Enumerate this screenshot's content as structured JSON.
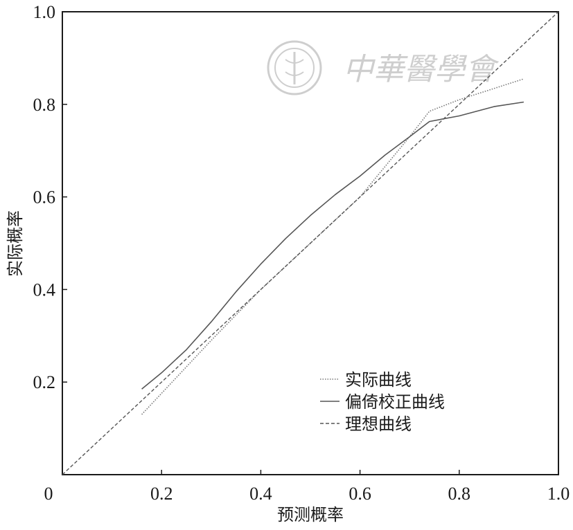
{
  "chart_data": {
    "type": "line",
    "xlabel": "预测概率",
    "ylabel": "实际概率",
    "xlim": [
      0,
      1.0
    ],
    "ylim": [
      0,
      1.0
    ],
    "x_ticks": [
      {
        "value": 0,
        "label": "0"
      },
      {
        "value": 0.2,
        "label": "0.2"
      },
      {
        "value": 0.4,
        "label": "0.4"
      },
      {
        "value": 0.6,
        "label": "0.6"
      },
      {
        "value": 0.8,
        "label": "0.8"
      },
      {
        "value": 1.0,
        "label": "1.0"
      }
    ],
    "y_ticks": [
      {
        "value": 0.2,
        "label": "0.2"
      },
      {
        "value": 0.4,
        "label": "0.4"
      },
      {
        "value": 0.6,
        "label": "0.6"
      },
      {
        "value": 0.8,
        "label": "0.8"
      },
      {
        "value": 1.0,
        "label": "1.0"
      }
    ],
    "grid": false,
    "legend_position": "bottom-right",
    "series": [
      {
        "name": "实际曲线",
        "style": "dotted",
        "color": "#777777",
        "points": [
          [
            0.16,
            0.13
          ],
          [
            0.3,
            0.29
          ],
          [
            0.4,
            0.4
          ],
          [
            0.5,
            0.5
          ],
          [
            0.6,
            0.6
          ],
          [
            0.7,
            0.73
          ],
          [
            0.74,
            0.785
          ],
          [
            0.8,
            0.81
          ],
          [
            0.93,
            0.855
          ]
        ]
      },
      {
        "name": "偏倚校正曲线",
        "style": "solid",
        "color": "#555555",
        "points": [
          [
            0.16,
            0.185
          ],
          [
            0.2,
            0.22
          ],
          [
            0.25,
            0.27
          ],
          [
            0.3,
            0.33
          ],
          [
            0.35,
            0.395
          ],
          [
            0.4,
            0.455
          ],
          [
            0.45,
            0.51
          ],
          [
            0.5,
            0.56
          ],
          [
            0.55,
            0.605
          ],
          [
            0.6,
            0.645
          ],
          [
            0.65,
            0.69
          ],
          [
            0.7,
            0.73
          ],
          [
            0.74,
            0.763
          ],
          [
            0.8,
            0.775
          ],
          [
            0.87,
            0.795
          ],
          [
            0.93,
            0.805
          ]
        ]
      },
      {
        "name": "理想曲线",
        "style": "dashed",
        "color": "#555555",
        "points": [
          [
            0,
            0
          ],
          [
            1.0,
            1.0
          ]
        ]
      }
    ],
    "watermark": "中華醫學會"
  }
}
